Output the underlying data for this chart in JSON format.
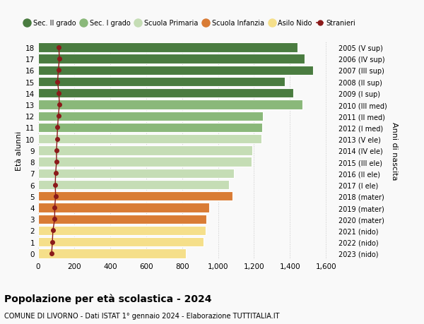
{
  "ages": [
    18,
    17,
    16,
    15,
    14,
    13,
    12,
    11,
    10,
    9,
    8,
    7,
    6,
    5,
    4,
    3,
    2,
    1,
    0
  ],
  "right_labels": [
    "2005 (V sup)",
    "2006 (IV sup)",
    "2007 (III sup)",
    "2008 (II sup)",
    "2009 (I sup)",
    "2010 (III med)",
    "2011 (II med)",
    "2012 (I med)",
    "2013 (V ele)",
    "2014 (IV ele)",
    "2015 (III ele)",
    "2016 (II ele)",
    "2017 (I ele)",
    "2018 (mater)",
    "2019 (mater)",
    "2020 (mater)",
    "2021 (nido)",
    "2022 (nido)",
    "2023 (nido)"
  ],
  "bar_values": [
    1440,
    1480,
    1530,
    1370,
    1420,
    1470,
    1250,
    1245,
    1240,
    1190,
    1185,
    1090,
    1060,
    1080,
    950,
    935,
    930,
    920,
    820
  ],
  "bar_colors": [
    "#4a7c40",
    "#4a7c40",
    "#4a7c40",
    "#4a7c40",
    "#4a7c40",
    "#8ab87a",
    "#8ab87a",
    "#8ab87a",
    "#c5ddb5",
    "#c5ddb5",
    "#c5ddb5",
    "#c5ddb5",
    "#c5ddb5",
    "#d97c35",
    "#d97c35",
    "#d97c35",
    "#f5df8a",
    "#f5df8a",
    "#f5df8a"
  ],
  "stranieri_values": [
    115,
    118,
    112,
    108,
    115,
    118,
    112,
    108,
    105,
    102,
    102,
    97,
    95,
    97,
    92,
    92,
    82,
    79,
    75
  ],
  "stranieri_color": "#8b1a1a",
  "title": "Popolazione per età scolastica - 2024",
  "subtitle": "COMUNE DI LIVORNO - Dati ISTAT 1° gennaio 2024 - Elaborazione TUTTITALIA.IT",
  "ylabel": "Età alunni",
  "right_ylabel": "Anni di nascita",
  "xlim": [
    0,
    1650
  ],
  "xticks": [
    0,
    200,
    400,
    600,
    800,
    1000,
    1200,
    1400,
    1600
  ],
  "xtick_labels": [
    "0",
    "200",
    "400",
    "600",
    "800",
    "1,000",
    "1,200",
    "1,400",
    "1,600"
  ],
  "legend_labels": [
    "Sec. II grado",
    "Sec. I grado",
    "Scuola Primaria",
    "Scuola Infanzia",
    "Asilo Nido",
    "Stranieri"
  ],
  "legend_colors": [
    "#4a7c40",
    "#8ab87a",
    "#c5ddb5",
    "#d97c35",
    "#f5df8a",
    "#8b1a1a"
  ],
  "bg_color": "#f9f9f9",
  "bar_height": 0.82
}
